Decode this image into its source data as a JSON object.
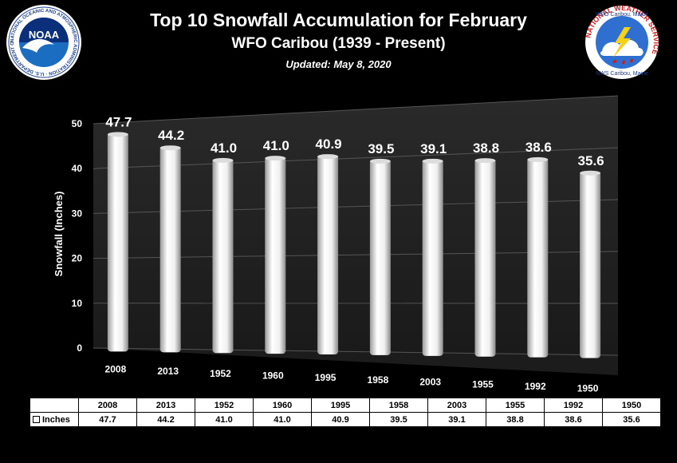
{
  "header": {
    "title": "Top 10 Snowfall Accumulation for February",
    "subtitle": "WFO Caribou (1939 - Present)",
    "updated": "Updated:  May 8, 2020"
  },
  "logos": {
    "left": {
      "name": "noaa-logo",
      "text": "NOAA",
      "ring_text": "NATIONAL OCEANIC AND ATMOSPHERIC ADMINISTRATION · U.S. DEPARTMENT OF COMMERCE"
    },
    "right": {
      "name": "nws-logo",
      "top_text": "WFO Caribou, Maine",
      "middle_text": "NATIONAL WEATHER SERVICE",
      "bottom_text": "NWS Caribou, Maine"
    }
  },
  "colors": {
    "background": "#000000",
    "bar": "#ffffff",
    "wall": "#2b2b2b",
    "table_bg": "#ffffff"
  },
  "chart_data": {
    "type": "bar",
    "title": "",
    "xlabel": "",
    "ylabel": "Snowfall (Inches)",
    "ylim": [
      0,
      50
    ],
    "yticks": [
      0,
      10,
      20,
      30,
      40,
      50
    ],
    "categories": [
      "2008",
      "2013",
      "1952",
      "1960",
      "1995",
      "1958",
      "2003",
      "1955",
      "1992",
      "1950"
    ],
    "series": [
      {
        "name": "Inches",
        "values": [
          47.7,
          44.2,
          41.0,
          41.0,
          40.9,
          39.5,
          39.1,
          38.8,
          38.6,
          35.6
        ]
      }
    ],
    "data_labels": [
      "47.7",
      "44.2",
      "41.0",
      "41.0",
      "40.9",
      "39.5",
      "39.1",
      "38.8",
      "38.6",
      "35.6"
    ],
    "grid": true,
    "data_table": true
  },
  "table": {
    "series_label": "Inches",
    "values_text": [
      "47.7",
      "44.2",
      "41.0",
      "41.0",
      "40.9",
      "39.5",
      "39.1",
      "38.8",
      "38.6",
      "35.6"
    ]
  }
}
